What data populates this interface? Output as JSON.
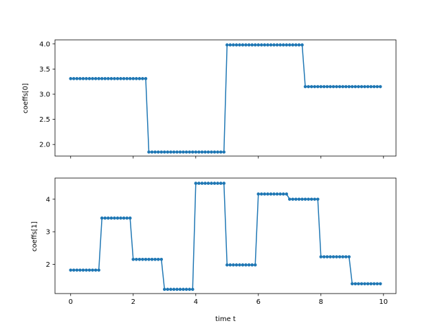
{
  "chart_data": [
    {
      "type": "line",
      "ylabel": "coeffs[0]",
      "xlabel": "",
      "xlim": [
        -0.5,
        10.4
      ],
      "ylim": [
        1.77,
        4.08
      ],
      "xticks": [
        0,
        2,
        4,
        6,
        8,
        10
      ],
      "xtick_labels_visible": false,
      "yticks": [
        2.0,
        2.5,
        3.0,
        3.5,
        4.0
      ],
      "ytick_labels": [
        "2.0",
        "2.5",
        "3.0",
        "3.5",
        "4.0"
      ],
      "grid": false,
      "color": "#1f77b4",
      "marker": "dot",
      "x_step": 0.1,
      "x_count": 100,
      "segments": [
        {
          "from": 0.0,
          "to": 2.4,
          "value": 3.31
        },
        {
          "from": 2.5,
          "to": 4.9,
          "value": 1.85
        },
        {
          "from": 5.0,
          "to": 7.4,
          "value": 3.98
        },
        {
          "from": 7.5,
          "to": 9.9,
          "value": 3.15
        }
      ]
    },
    {
      "type": "line",
      "ylabel": "coeffs[1]",
      "xlabel": "time t",
      "xlim": [
        -0.5,
        10.4
      ],
      "ylim": [
        1.1,
        4.65
      ],
      "xticks": [
        0,
        2,
        4,
        6,
        8,
        10
      ],
      "xtick_labels": [
        "0",
        "2",
        "4",
        "6",
        "8",
        "10"
      ],
      "yticks": [
        2,
        3,
        4
      ],
      "ytick_labels": [
        "2",
        "3",
        "4"
      ],
      "grid": false,
      "color": "#1f77b4",
      "marker": "dot",
      "x_step": 0.1,
      "x_count": 100,
      "segments": [
        {
          "from": 0.0,
          "to": 0.9,
          "value": 1.82
        },
        {
          "from": 1.0,
          "to": 1.9,
          "value": 3.42
        },
        {
          "from": 2.0,
          "to": 2.9,
          "value": 2.15
        },
        {
          "from": 3.0,
          "to": 3.9,
          "value": 1.23
        },
        {
          "from": 4.0,
          "to": 4.9,
          "value": 4.49
        },
        {
          "from": 5.0,
          "to": 5.9,
          "value": 1.98
        },
        {
          "from": 6.0,
          "to": 6.9,
          "value": 4.16
        },
        {
          "from": 7.0,
          "to": 7.9,
          "value": 4.0
        },
        {
          "from": 8.0,
          "to": 8.9,
          "value": 2.23
        },
        {
          "from": 9.0,
          "to": 9.9,
          "value": 1.4
        }
      ]
    }
  ]
}
